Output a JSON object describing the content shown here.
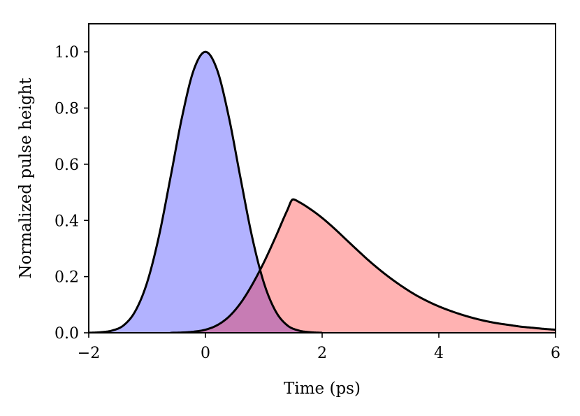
{
  "chart_data": {
    "type": "area",
    "title": "",
    "xlabel": "Time (ps)",
    "ylabel": "Normalized pulse height",
    "xlim": [
      -2,
      6
    ],
    "ylim": [
      0,
      1.1
    ],
    "xticks": [
      {
        "value": -2,
        "label": "−2"
      },
      {
        "value": 0,
        "label": "0"
      },
      {
        "value": 2,
        "label": "2"
      },
      {
        "value": 4,
        "label": "4"
      },
      {
        "value": 6,
        "label": "6"
      }
    ],
    "yticks": [
      {
        "value": 0.0,
        "label": "0.0"
      },
      {
        "value": 0.2,
        "label": "0.2"
      },
      {
        "value": 0.4,
        "label": "0.4"
      },
      {
        "value": 0.6,
        "label": "0.6"
      },
      {
        "value": 0.8,
        "label": "0.8"
      },
      {
        "value": 1.0,
        "label": "1.0"
      }
    ],
    "grid": false,
    "legend": "none",
    "overlap_fill_color": "#c77cb4",
    "series": [
      {
        "fill_color": "#b2b2ff",
        "line_color": "#000000",
        "x": [
          -2.0,
          -1.8,
          -1.6,
          -1.4,
          -1.2,
          -1.0,
          -0.8,
          -0.6,
          -0.4,
          -0.2,
          0.0,
          0.2,
          0.4,
          0.6,
          0.8,
          1.0,
          1.2,
          1.4,
          1.6,
          1.8,
          2.0
        ],
        "y": [
          0.0,
          0.002,
          0.008,
          0.027,
          0.078,
          0.179,
          0.341,
          0.552,
          0.769,
          0.936,
          1.0,
          0.936,
          0.769,
          0.552,
          0.341,
          0.179,
          0.078,
          0.027,
          0.008,
          0.002,
          0.0
        ]
      },
      {
        "fill_color": "#ffb2b2",
        "line_color": "#000000",
        "x": [
          -0.6,
          -0.4,
          -0.2,
          0.0,
          0.2,
          0.4,
          0.6,
          0.8,
          1.0,
          1.2,
          1.4,
          1.5,
          1.6,
          1.8,
          2.0,
          2.2,
          2.4,
          2.6,
          2.8,
          3.0,
          3.2,
          3.4,
          3.6,
          3.8,
          4.0,
          4.2,
          4.4,
          4.6,
          4.8,
          5.0,
          5.2,
          5.4,
          5.6,
          5.8,
          6.0
        ],
        "y": [
          0.0,
          0.001,
          0.004,
          0.011,
          0.027,
          0.057,
          0.105,
          0.171,
          0.25,
          0.34,
          0.435,
          0.475,
          0.466,
          0.44,
          0.409,
          0.373,
          0.334,
          0.295,
          0.257,
          0.222,
          0.19,
          0.161,
          0.135,
          0.113,
          0.094,
          0.078,
          0.064,
          0.052,
          0.042,
          0.034,
          0.028,
          0.022,
          0.018,
          0.014,
          0.011
        ]
      }
    ]
  }
}
